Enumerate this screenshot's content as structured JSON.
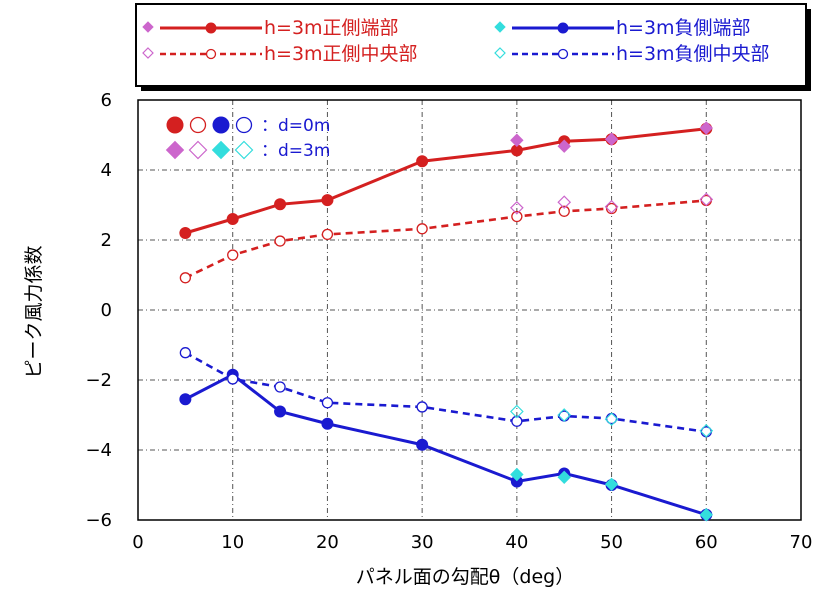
{
  "chart_data": {
    "type": "line",
    "xlabel": "パネル面の勾配θ（deg）",
    "ylabel": "ピーク風力係数",
    "xlim": [
      0,
      70
    ],
    "ylim": [
      -6,
      6
    ],
    "xticks": [
      0,
      10,
      20,
      30,
      40,
      50,
      60,
      70
    ],
    "yticks": [
      -6,
      -4,
      -2,
      0,
      2,
      4,
      6
    ],
    "xtick_labels": [
      "0",
      "10",
      "20",
      "30",
      "40",
      "50",
      "60",
      "70"
    ],
    "ytick_labels": [
      "−6",
      "−4",
      "−2",
      "0",
      "2",
      "4",
      "6"
    ],
    "grid": true,
    "legend_position": "top",
    "colors": {
      "red": "#d42020",
      "blue": "#1a1ad0",
      "pink": "#cc66cc",
      "cyan": "#33dddd"
    },
    "series": [
      {
        "name": "h=3m正側端部",
        "color": "#d42020",
        "line": "solid",
        "marker": "filled-circle",
        "x": [
          5,
          10,
          15,
          20,
          30,
          40,
          45,
          50,
          60
        ],
        "values": [
          2.2,
          2.6,
          3.02,
          3.14,
          4.25,
          4.56,
          4.82,
          4.88,
          5.18
        ]
      },
      {
        "name": "h=3m正側中央部",
        "color": "#d42020",
        "line": "dashed",
        "marker": "open-circle",
        "x": [
          5,
          10,
          15,
          20,
          30,
          40,
          45,
          50,
          60
        ],
        "values": [
          0.92,
          1.57,
          1.97,
          2.16,
          2.32,
          2.67,
          2.82,
          2.9,
          3.13
        ]
      },
      {
        "name": "h=3m負側端部",
        "color": "#1a1ad0",
        "line": "solid",
        "marker": "filled-circle",
        "x": [
          5,
          10,
          15,
          20,
          30,
          40,
          45,
          50,
          60
        ],
        "values": [
          -2.55,
          -1.85,
          -2.9,
          -3.25,
          -3.85,
          -4.9,
          -4.67,
          -5.0,
          -5.85
        ]
      },
      {
        "name": "h=3m負側中央部",
        "color": "#1a1ad0",
        "line": "dashed",
        "marker": "open-circle",
        "x": [
          5,
          10,
          15,
          20,
          30,
          40,
          45,
          50,
          60
        ],
        "values": [
          -1.22,
          -1.97,
          -2.2,
          -2.65,
          -2.77,
          -3.18,
          -3.03,
          -3.1,
          -3.48
        ]
      },
      {
        "name": "",
        "color": "#cc66cc",
        "line": "none",
        "marker": "filled-diamond",
        "x": [
          40,
          45,
          50,
          60
        ],
        "values": [
          4.85,
          4.68,
          4.88,
          5.2
        ]
      },
      {
        "name": "",
        "color": "#cc66cc",
        "line": "none",
        "marker": "open-diamond",
        "x": [
          40,
          45,
          50,
          60
        ],
        "values": [
          2.92,
          3.08,
          2.95,
          3.16
        ]
      },
      {
        "name": "",
        "color": "#33dddd",
        "line": "none",
        "marker": "filled-diamond",
        "x": [
          40,
          45,
          50,
          60
        ],
        "values": [
          -4.7,
          -4.78,
          -4.98,
          -5.85
        ]
      },
      {
        "name": "",
        "color": "#33dddd",
        "line": "none",
        "marker": "open-diamond",
        "x": [
          40,
          45,
          50,
          60
        ],
        "values": [
          -2.9,
          -3.0,
          -3.12,
          -3.45
        ]
      }
    ],
    "legend": [
      {
        "label": "h=3m正側端部",
        "line_color": "#d42020",
        "line": "solid",
        "marker": "filled-circle",
        "diamond_color": "#cc66cc",
        "diamond": "filled-diamond"
      },
      {
        "label": "h=3m負側端部",
        "line_color": "#1a1ad0",
        "line": "solid",
        "marker": "filled-circle",
        "diamond_color": "#33dddd",
        "diamond": "filled-diamond"
      },
      {
        "label": "h=3m正側中央部",
        "line_color": "#d42020",
        "line": "dashed",
        "marker": "open-circle",
        "diamond_color": "#cc66cc",
        "diamond": "open-diamond"
      },
      {
        "label": "h=3m負側中央部",
        "line_color": "#1a1ad0",
        "line": "dashed",
        "marker": "open-circle",
        "diamond_color": "#33dddd",
        "diamond": "open-diamond"
      }
    ],
    "inner_legend": [
      {
        "label": "：d=0m",
        "markers": [
          "filled-circle:#d42020",
          "open-circle:#d42020",
          "filled-circle:#1a1ad0",
          "open-circle:#1a1ad0"
        ]
      },
      {
        "label": "：d=3m",
        "markers": [
          "filled-diamond:#cc66cc",
          "open-diamond:#cc66cc",
          "filled-diamond:#33dddd",
          "open-diamond:#33dddd"
        ]
      }
    ]
  }
}
